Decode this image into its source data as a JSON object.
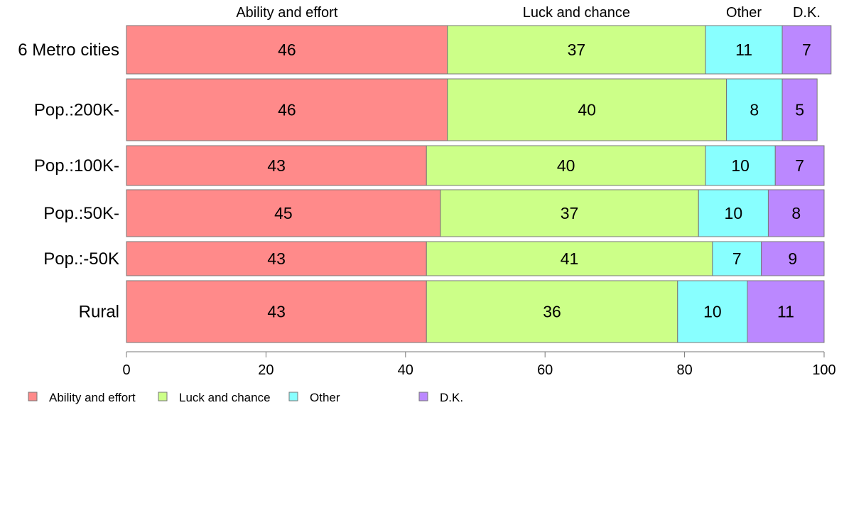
{
  "chart_data": {
    "type": "bar",
    "orientation": "horizontal",
    "stacked": true,
    "categories": [
      "6 Metro cities",
      "Pop.:200K-",
      "Pop.:100K-",
      "Pop.:50K-",
      "Pop.:-50K",
      "Rural"
    ],
    "series": [
      {
        "name": "Ability and effort",
        "color": "#FF8A8A",
        "values": [
          46,
          46,
          43,
          45,
          43,
          43
        ],
        "labels": [
          "46",
          "46",
          "43",
          "45",
          "43",
          "43"
        ]
      },
      {
        "name": "Luck and chance",
        "color": "#CCFF88",
        "values": [
          37,
          40,
          40,
          37,
          41,
          36
        ],
        "labels": [
          "37",
          "40",
          "40",
          "37",
          "41",
          "36"
        ]
      },
      {
        "name": "Other",
        "color": "#88FFFF",
        "values": [
          11,
          8,
          10,
          10,
          7,
          10
        ],
        "labels": [
          "11",
          "8",
          "10",
          "10",
          "7",
          "10"
        ]
      },
      {
        "name": "D.K.",
        "color": "#BB88FF",
        "values": [
          7,
          5,
          7,
          8,
          9,
          11
        ],
        "labels": [
          "7",
          "5",
          "7",
          "8",
          "9",
          "11"
        ]
      }
    ],
    "xlim": [
      0,
      100
    ],
    "xticks": [
      0,
      20,
      40,
      60,
      80,
      100
    ],
    "xtick_labels": [
      "0",
      "20",
      "40",
      "60",
      "80",
      "100"
    ],
    "top_labels": [
      "Ability and effort",
      "Luck and chance",
      "Other",
      "D.K."
    ],
    "legend_position": "bottom-left",
    "grid": false
  }
}
